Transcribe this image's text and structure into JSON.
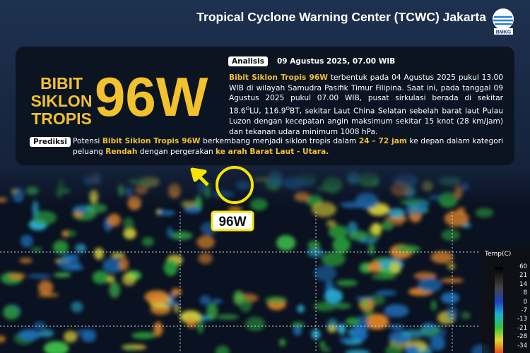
{
  "header": {
    "title": "Tropical Cyclone Warning Center (TCWC) Jakarta",
    "logo_text": "BMKG"
  },
  "headline": {
    "lines": [
      "BIBIT",
      "SIKLON",
      "TROPIS"
    ],
    "code": "96W"
  },
  "analysis": {
    "label": "Analisis",
    "date": "09 Agustus 2025, 07.00 WIB",
    "segments": [
      {
        "text": "Bibit Siklon Tropis 96W",
        "bold": true
      },
      {
        "text": " terbentuk pada 04 Agustus 2025 pukul 13.00 WIB di wilayah Samudra Pasifik Timur Filipina. Saat ini, pada tanggal 09 Agustus 2025 pukul 07.00 WIB, pusat sirkulasi berada di sekitar 18.6"
      },
      {
        "text": "O",
        "sup": true
      },
      {
        "text": "LU, 116.9"
      },
      {
        "text": "O",
        "sup": true
      },
      {
        "text": "BT, sekitar Laut China Selatan sebelah barat laut Pulau Luzon  dengan kecepatan angin maksimum sekitar 15 knot (28 km/jam) dan tekanan udara minimum 1008 hPa."
      }
    ]
  },
  "prediction": {
    "label": "Prediksi",
    "segments": [
      {
        "text": "Potensi "
      },
      {
        "text": "Bibit Siklon Tropis 96W",
        "bold": true
      },
      {
        "text": " berkembang menjadi siklon tropis dalam "
      },
      {
        "text": "24 – 72 jam",
        "bold": true
      },
      {
        "text": " ke depan dalam kategori peluang "
      },
      {
        "text": "Rendah",
        "bold": true
      },
      {
        "text": " dengan pergerakan "
      },
      {
        "text": "ke arah Barat Laut - Utara.",
        "bold": true
      }
    ]
  },
  "map": {
    "marker_label": "96W"
  },
  "legend": {
    "title": "Temp(C)",
    "ticks": [
      60,
      21,
      14,
      8,
      0,
      -7,
      -13,
      -21,
      -28,
      -34
    ]
  }
}
